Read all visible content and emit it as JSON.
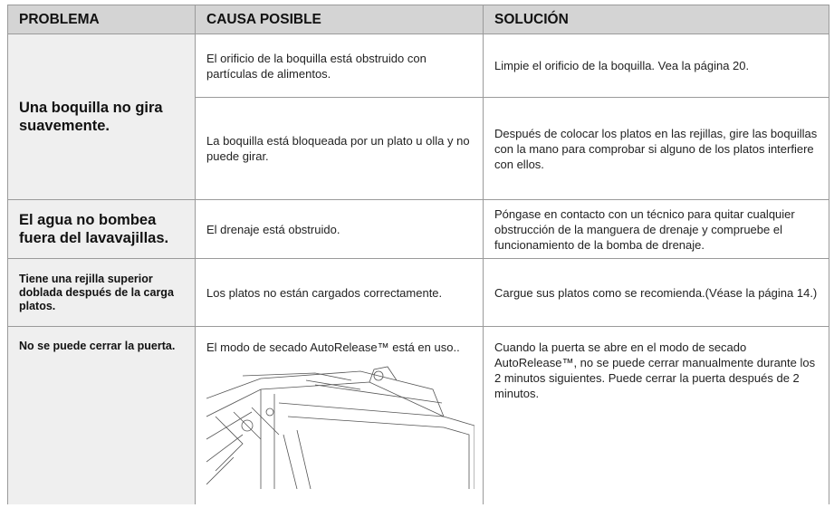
{
  "table": {
    "header": [
      "PROBLEMA",
      "CAUSA POSIBLE",
      "SOLUCIÓN"
    ],
    "rows": [
      {
        "problem": "Una boquilla no gira suavemente.",
        "causes": [
          {
            "cause": "El orificio de la boquilla está obstruido con partículas de alimentos.",
            "solution": "Limpie el orificio de la boquilla. Vea la página 20."
          },
          {
            "cause": "La boquilla está bloqueada por un plato u olla y no puede girar.",
            "solution": "Después de colocar los platos en las rejillas, gire las boquillas con la mano para comprobar si alguno de los platos interfiere con ellos."
          }
        ]
      },
      {
        "problem": "El agua no bombea fuera del lavavajillas.",
        "causes": [
          {
            "cause": "El drenaje está obstruido.",
            "solution": "Póngase en contacto con un técnico para quitar cualquier obstrucción de la manguera de drenaje y compruebe el funcionamiento de la bomba de drenaje."
          }
        ]
      },
      {
        "problem": "Tiene una rejilla superior doblada después de la carga platos.",
        "causes": [
          {
            "cause": "Los platos no están cargados correctamente.",
            "solution": "Cargue sus platos como se recomienda.(Véase la página 14.)"
          }
        ]
      },
      {
        "problem": "No se puede cerrar la puerta.",
        "causes": [
          {
            "cause": "El modo de secado AutoRelease™ está en uso..",
            "solution": "Cuando la puerta se abre en el modo de secado AutoRelease™, no se puede cerrar manualmente durante los 2 minutos siguientes. Puede cerrar la puerta después de 2 minutos."
          }
        ]
      }
    ]
  }
}
